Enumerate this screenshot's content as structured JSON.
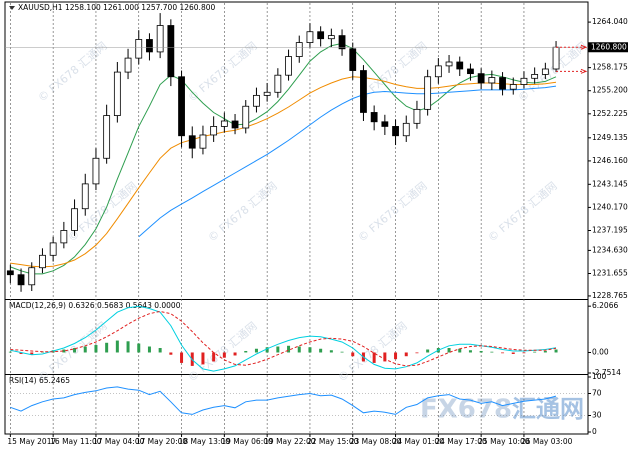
{
  "watermark": "© FX678 汇通网",
  "logo": {
    "latin": "FX678",
    "cn": "汇通网"
  },
  "chart_data": [
    {
      "type": "candlestick",
      "title": "XAUUSD,H1  1258.100 1261.000 1257.700 1260.800",
      "categories": [
        "15 May 2017",
        null,
        null,
        null,
        "16 May 11:00",
        null,
        null,
        null,
        "17 May 04:00",
        null,
        null,
        null,
        "17 May 20:00",
        null,
        null,
        null,
        "18 May 13:00",
        null,
        null,
        null,
        "19 May 06:00",
        null,
        null,
        null,
        "19 May 22:00",
        null,
        null,
        null,
        "22 May 15:00",
        null,
        null,
        null,
        "23 May 08:00",
        null,
        null,
        null,
        "24 May 01:00",
        null,
        null,
        null,
        "24 May 17:00",
        null,
        null,
        null,
        "25 May 10:00",
        null,
        null,
        null,
        "26 May 03:00",
        null,
        null,
        null
      ],
      "open": [
        1232.0,
        1231.5,
        1230.2,
        1232.4,
        1234.0,
        1235.6,
        1237.2,
        1240.0,
        1243.2,
        1246.5,
        1252.0,
        1257.6,
        1259.4,
        1261.8,
        1260.2,
        1263.6,
        1257.0,
        1249.4,
        1247.8,
        1249.5,
        1250.6,
        1251.3,
        1250.4,
        1253.2,
        1254.6,
        1255.0,
        1257.2,
        1259.6,
        1261.4,
        1262.8,
        1261.9,
        1262.3,
        1260.6,
        1257.8,
        1252.4,
        1251.2,
        1250.6,
        1249.4,
        1251.0,
        1252.8,
        1257.0,
        1258.4,
        1258.9,
        1258.0,
        1257.4,
        1256.2,
        1256.9,
        1255.4,
        1256.0,
        1256.8,
        1257.3,
        1258.0
      ],
      "high": [
        1232.8,
        1232.3,
        1233.1,
        1234.9,
        1236.4,
        1238.3,
        1241.2,
        1244.5,
        1247.8,
        1253.4,
        1258.9,
        1260.6,
        1263.0,
        1262.6,
        1265.2,
        1264.4,
        1257.8,
        1250.6,
        1250.7,
        1251.9,
        1252.4,
        1252.2,
        1254.0,
        1255.6,
        1256.2,
        1258.1,
        1260.5,
        1262.3,
        1263.9,
        1263.5,
        1263.2,
        1263.1,
        1261.4,
        1258.5,
        1253.3,
        1252.1,
        1251.5,
        1252.0,
        1253.9,
        1257.9,
        1259.4,
        1259.8,
        1259.6,
        1258.7,
        1258.1,
        1257.8,
        1257.6,
        1256.9,
        1257.7,
        1258.2,
        1258.8,
        1261.6
      ],
      "low": [
        1230.4,
        1229.3,
        1229.4,
        1231.7,
        1233.2,
        1234.9,
        1236.5,
        1239.1,
        1242.4,
        1245.8,
        1251.1,
        1256.7,
        1258.6,
        1259.1,
        1259.4,
        1255.8,
        1247.9,
        1246.5,
        1247.0,
        1248.6,
        1249.8,
        1249.6,
        1249.7,
        1252.4,
        1253.8,
        1254.3,
        1256.5,
        1258.8,
        1260.7,
        1260.9,
        1260.8,
        1259.7,
        1256.6,
        1251.3,
        1250.1,
        1249.5,
        1248.2,
        1248.6,
        1250.3,
        1252.0,
        1256.1,
        1257.5,
        1257.1,
        1256.5,
        1255.4,
        1255.3,
        1254.6,
        1254.7,
        1255.5,
        1256.1,
        1256.7,
        1257.6
      ],
      "close": [
        1231.5,
        1230.2,
        1232.4,
        1234.0,
        1235.6,
        1237.2,
        1240.0,
        1243.2,
        1246.5,
        1252.0,
        1257.6,
        1259.4,
        1261.8,
        1260.2,
        1263.6,
        1257.0,
        1249.4,
        1247.8,
        1249.5,
        1250.6,
        1251.3,
        1250.4,
        1253.2,
        1254.6,
        1255.0,
        1257.2,
        1259.6,
        1261.4,
        1262.8,
        1261.9,
        1262.3,
        1260.6,
        1257.8,
        1252.4,
        1251.2,
        1250.6,
        1249.4,
        1251.0,
        1252.8,
        1257.0,
        1258.4,
        1258.9,
        1258.0,
        1257.4,
        1256.2,
        1256.9,
        1255.4,
        1256.0,
        1256.8,
        1257.3,
        1258.0,
        1260.8
      ],
      "up_color": "#ffffff",
      "down_color": "#000000",
      "wick_color": "#000000",
      "series": [
        {
          "color": "#2e9e4f",
          "values": [
            1232.5,
            1232.0,
            1231.6,
            1231.6,
            1232.0,
            1232.7,
            1233.8,
            1235.4,
            1237.4,
            1240.2,
            1243.8,
            1247.2,
            1250.6,
            1253.2,
            1256.0,
            1257.2,
            1256.6,
            1255.0,
            1253.6,
            1252.4,
            1251.6,
            1250.8,
            1250.9,
            1251.6,
            1252.5,
            1253.8,
            1255.4,
            1257.2,
            1259.0,
            1260.2,
            1261.0,
            1261.3,
            1260.6,
            1259.2,
            1257.6,
            1256.0,
            1254.4,
            1253.2,
            1252.6,
            1253.0,
            1254.0,
            1255.2,
            1256.2,
            1256.9,
            1257.2,
            1257.3,
            1257.0,
            1256.6,
            1256.3,
            1256.2,
            1256.4,
            1257.0
          ]
        },
        {
          "color": "#f08c00",
          "values": [
            1233.0,
            1232.8,
            1232.6,
            1232.5,
            1232.6,
            1232.9,
            1233.4,
            1234.2,
            1235.3,
            1236.8,
            1238.7,
            1240.7,
            1242.7,
            1244.6,
            1246.5,
            1247.8,
            1248.5,
            1248.9,
            1249.3,
            1249.6,
            1249.9,
            1250.1,
            1250.5,
            1251.0,
            1251.6,
            1252.3,
            1253.1,
            1254.0,
            1254.9,
            1255.6,
            1256.2,
            1256.7,
            1257.0,
            1256.9,
            1256.7,
            1256.4,
            1256.0,
            1255.7,
            1255.5,
            1255.5,
            1255.6,
            1255.8,
            1256.0,
            1256.1,
            1256.2,
            1256.2,
            1256.1,
            1256.0,
            1256.0,
            1256.0,
            1256.1,
            1256.3
          ]
        },
        {
          "color": "#1e90ff",
          "values": [
            null,
            null,
            null,
            null,
            null,
            null,
            null,
            null,
            null,
            null,
            null,
            null,
            1236.4,
            1237.6,
            1238.8,
            1239.8,
            1240.6,
            1241.4,
            1242.2,
            1243.0,
            1243.8,
            1244.6,
            1245.4,
            1246.2,
            1247.0,
            1247.9,
            1248.8,
            1249.8,
            1250.8,
            1251.8,
            1252.7,
            1253.5,
            1254.2,
            1254.7,
            1255.0,
            1255.1,
            1255.0,
            1254.9,
            1254.8,
            1254.8,
            1254.9,
            1255.0,
            1255.1,
            1255.2,
            1255.3,
            1255.3,
            1255.3,
            1255.3,
            1255.4,
            1255.5,
            1255.6,
            1255.8
          ]
        }
      ],
      "ylim": [
        1228.5,
        1266.5
      ],
      "yticks": [
        {
          "value": 1264.04,
          "label": "1264.040"
        },
        1258.175,
        {
          "value": 1255.2,
          "label": "1255.200"
        },
        1252.225,
        1249.135,
        {
          "value": 1246.16,
          "label": "1246.160"
        },
        1243.145,
        {
          "value": 1240.17,
          "label": "1240.170"
        },
        1237.195,
        {
          "value": 1234.63,
          "label": "1234.630"
        },
        1231.655,
        1228.765
      ],
      "current_price": {
        "value": 1260.8,
        "label": "1260.800"
      },
      "alert_lines": [
        1260.8,
        1257.7
      ],
      "alert_color": "#e02020"
    },
    {
      "type": "macd",
      "title": "MACD(12,26,9) 0.6326 0.5683 0.5643 0.0000",
      "histogram": [
        0.1,
        -0.2,
        -0.3,
        0.1,
        0.3,
        0.4,
        0.6,
        0.8,
        1.0,
        1.3,
        1.6,
        1.5,
        1.2,
        0.8,
        0.6,
        -0.3,
        -1.4,
        -1.8,
        -1.6,
        -1.2,
        -0.7,
        -0.4,
        0.2,
        0.5,
        0.7,
        0.8,
        0.9,
        0.8,
        0.7,
        0.5,
        0.3,
        0.1,
        -0.5,
        -1.2,
        -1.4,
        -1.2,
        -0.9,
        -0.5,
        -0.1,
        0.4,
        0.6,
        0.6,
        0.5,
        0.3,
        0.2,
        0.1,
        -0.1,
        -0.2,
        -0.1,
        0.1,
        0.2,
        0.4
      ],
      "up_color": "#2e9e4f",
      "down_color": "#e02020",
      "series": [
        {
          "color": "#00d0e0",
          "values": [
            0.3,
            0.0,
            -0.3,
            -0.2,
            0.2,
            0.6,
            1.2,
            2.0,
            3.0,
            4.2,
            5.4,
            6.0,
            6.2,
            5.9,
            5.4,
            3.6,
            1.0,
            -1.0,
            -2.2,
            -2.5,
            -2.2,
            -1.8,
            -1.0,
            -0.2,
            0.5,
            1.1,
            1.6,
            2.0,
            2.2,
            2.1,
            1.8,
            1.4,
            0.6,
            -0.6,
            -1.6,
            -2.1,
            -2.2,
            -1.9,
            -1.4,
            -0.5,
            0.3,
            0.9,
            1.1,
            1.1,
            0.9,
            0.7,
            0.4,
            0.2,
            0.2,
            0.3,
            0.4,
            0.63
          ]
        },
        {
          "color": "#e02020",
          "dashed": true,
          "values": [
            0.4,
            0.3,
            0.2,
            0.1,
            0.1,
            0.2,
            0.5,
            0.9,
            1.4,
            2.1,
            2.9,
            3.8,
            4.6,
            5.2,
            5.5,
            5.2,
            4.2,
            2.8,
            1.3,
            0.0,
            -1.0,
            -1.6,
            -1.7,
            -1.4,
            -0.9,
            -0.3,
            0.3,
            0.9,
            1.4,
            1.8,
            1.9,
            1.8,
            1.5,
            0.8,
            -0.1,
            -0.9,
            -1.5,
            -1.8,
            -1.7,
            -1.2,
            -0.6,
            0.0,
            0.5,
            0.8,
            0.9,
            0.8,
            0.6,
            0.4,
            0.3,
            0.3,
            0.3,
            0.56
          ]
        }
      ],
      "ylim": [
        -2.75,
        6.9
      ],
      "yticks": [
        6.2066,
        {
          "value": 0,
          "label": "0.00"
        },
        -2.7514
      ]
    },
    {
      "type": "line",
      "title": "RSI(14) 65.2465",
      "series": [
        {
          "color": "#1e90ff",
          "values": [
            45,
            38,
            48,
            55,
            60,
            62,
            68,
            72,
            75,
            80,
            82,
            78,
            76,
            68,
            74,
            55,
            35,
            32,
            40,
            45,
            48,
            44,
            55,
            58,
            58,
            62,
            65,
            68,
            70,
            66,
            67,
            60,
            48,
            35,
            38,
            36,
            32,
            45,
            50,
            62,
            66,
            68,
            60,
            58,
            52,
            55,
            48,
            52,
            56,
            58,
            60,
            65.2465
          ]
        }
      ],
      "ylim": [
        0,
        100
      ],
      "yticks": [
        100,
        70,
        30,
        0
      ],
      "levels": [
        70,
        30
      ]
    }
  ]
}
